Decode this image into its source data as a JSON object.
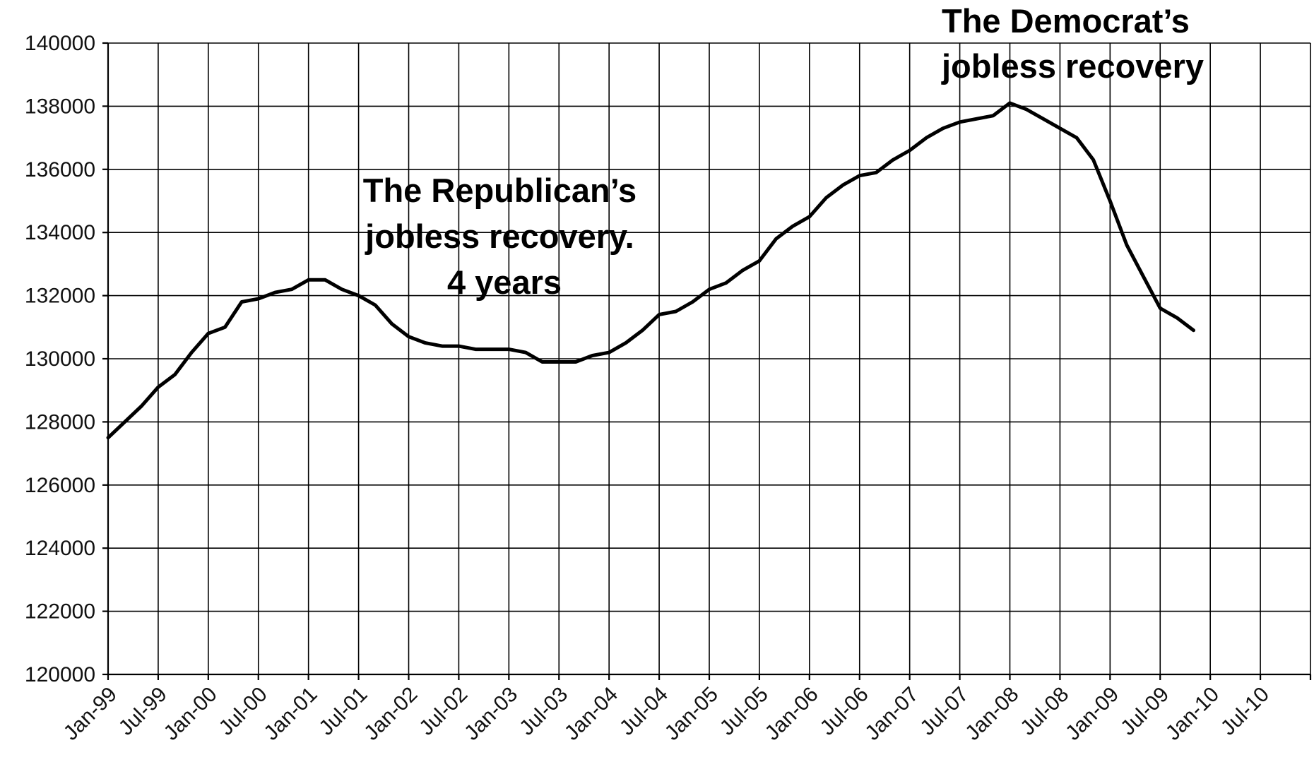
{
  "chart_data": {
    "type": "line",
    "title": "",
    "xlabel": "",
    "ylabel": "",
    "ylim": [
      120000,
      140000
    ],
    "yticks": [
      120000,
      122000,
      124000,
      126000,
      128000,
      130000,
      132000,
      134000,
      136000,
      138000,
      140000
    ],
    "ytick_labels": [
      "120000",
      "122000",
      "124000",
      "126000",
      "128000",
      "130000",
      "132000",
      "134000",
      "136000",
      "138000",
      "140000"
    ],
    "xlim": [
      "1999-01",
      "2011-01"
    ],
    "xtick_labels": [
      "Jan-99",
      "Jul-99",
      "Jan-00",
      "Jul-00",
      "Jan-01",
      "Jul-01",
      "Jan-02",
      "Jul-02",
      "Jan-03",
      "Jul-03",
      "Jan-04",
      "Jul-04",
      "Jan-05",
      "Jul-05",
      "Jan-06",
      "Jul-06",
      "Jan-07",
      "Jul-07",
      "Jan-08",
      "Jul-08",
      "Jan-09",
      "Jul-09",
      "Jan-10",
      "Jul-10"
    ],
    "grid": true,
    "legend": "none",
    "series": [
      {
        "x": [
          "1999-01",
          "1999-03",
          "1999-05",
          "1999-07",
          "1999-09",
          "1999-11",
          "2000-01",
          "2000-03",
          "2000-05",
          "2000-07",
          "2000-09",
          "2000-11",
          "2001-01",
          "2001-03",
          "2001-05",
          "2001-07",
          "2001-09",
          "2001-11",
          "2002-01",
          "2002-03",
          "2002-05",
          "2002-07",
          "2002-09",
          "2002-11",
          "2003-01",
          "2003-03",
          "2003-05",
          "2003-07",
          "2003-09",
          "2003-11",
          "2004-01",
          "2004-03",
          "2004-05",
          "2004-07",
          "2004-09",
          "2004-11",
          "2005-01",
          "2005-03",
          "2005-05",
          "2005-07",
          "2005-09",
          "2005-11",
          "2006-01",
          "2006-03",
          "2006-05",
          "2006-07",
          "2006-09",
          "2006-11",
          "2007-01",
          "2007-03",
          "2007-05",
          "2007-07",
          "2007-09",
          "2007-11",
          "2008-01",
          "2008-03",
          "2008-05",
          "2008-07",
          "2008-09",
          "2008-11",
          "2009-01",
          "2009-03",
          "2009-05",
          "2009-07",
          "2009-09",
          "2009-11"
        ],
        "values": [
          127500,
          128000,
          128500,
          129100,
          129500,
          130200,
          130800,
          131000,
          131800,
          131900,
          132100,
          132200,
          132500,
          132500,
          132200,
          132000,
          131700,
          131100,
          130700,
          130500,
          130400,
          130400,
          130300,
          130300,
          130300,
          130200,
          129900,
          129900,
          129900,
          130100,
          130200,
          130500,
          130900,
          131400,
          131500,
          131800,
          132200,
          132400,
          132800,
          133100,
          133800,
          134200,
          134500,
          135100,
          135500,
          135800,
          135900,
          136300,
          136600,
          137000,
          137300,
          137500,
          137600,
          137700,
          138100,
          137900,
          137600,
          137300,
          137000,
          136300,
          135000,
          133600,
          132600,
          131600,
          131300,
          130900
        ]
      }
    ],
    "annotations": [
      {
        "lines": [
          "The Republican’s",
          "jobless recovery.",
          "4 years"
        ]
      },
      {
        "lines": [
          "The Democrat’s",
          "jobless recovery"
        ]
      }
    ]
  }
}
